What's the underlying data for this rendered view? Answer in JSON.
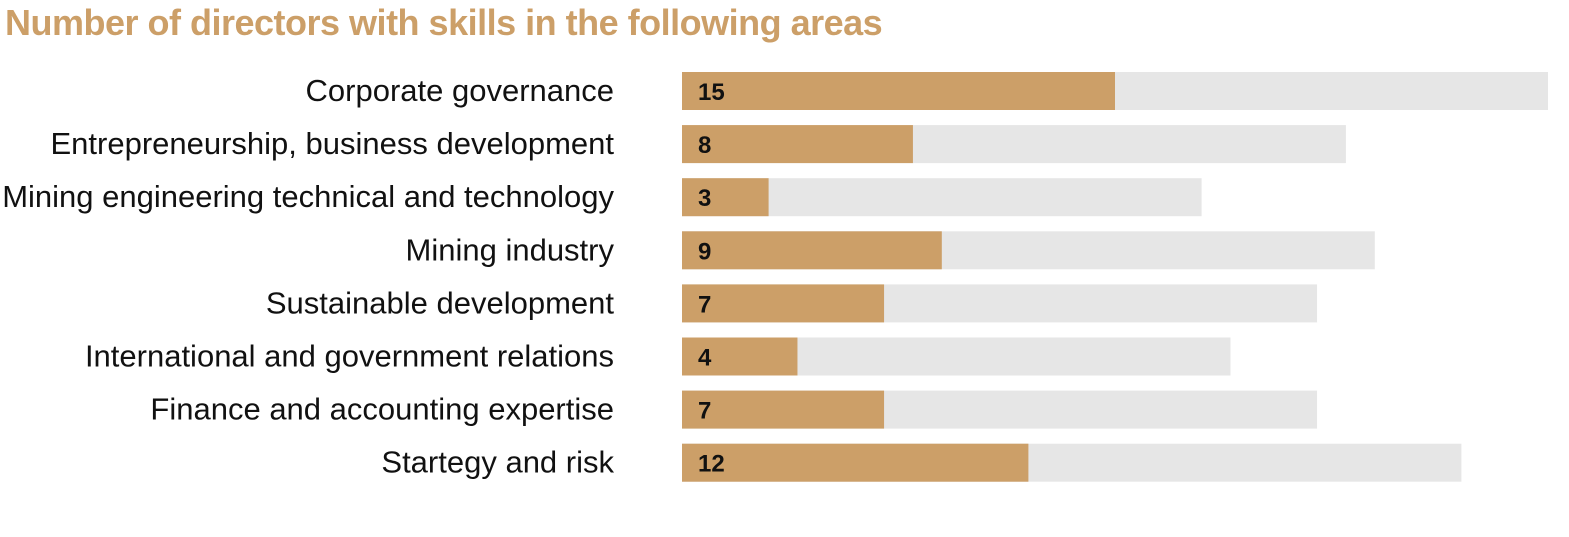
{
  "colors": {
    "accent": "#cc9f68",
    "track": "#e6e6e6",
    "text": "#111111"
  },
  "chart_data": {
    "type": "bar",
    "orientation": "horizontal",
    "title": "Number of directors with skills in the following areas",
    "categories": [
      "Corporate governance",
      "Entrepreneurship, business development",
      "Mining engineering technical and technology",
      "Mining industry",
      "Sustainable development",
      "International and government relations",
      "Finance and accounting expertise",
      "Startegy and risk"
    ],
    "values": [
      15,
      8,
      3,
      9,
      7,
      4,
      7,
      12
    ],
    "track_values": [
      30,
      23,
      18,
      24,
      22,
      19,
      22,
      27
    ],
    "xlim": [
      0,
      30
    ],
    "grid": false,
    "legend": "none"
  }
}
